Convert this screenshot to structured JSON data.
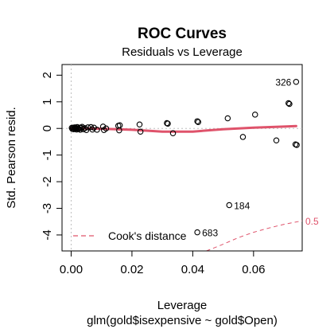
{
  "chart_data": {
    "type": "scatter",
    "title": "ROC Curves",
    "subtitle": "Residuals vs Leverage",
    "xlabel": "Leverage",
    "xlabel2": "glm(gold$isexpensive ~ gold$Open)",
    "ylabel": "Std. Pearson resid.",
    "xlim": [
      -0.003,
      0.076
    ],
    "ylim": [
      -4.6,
      2.4
    ],
    "x_ticks": [
      0.0,
      0.02,
      0.04,
      0.06
    ],
    "x_tick_labels": [
      "0.00",
      "0.02",
      "0.04",
      "0.06"
    ],
    "y_ticks": [
      -4,
      -3,
      -2,
      -1,
      0,
      1,
      2
    ],
    "y_tick_labels": [
      "-4",
      "-3",
      "-2",
      "-1",
      "0",
      "1",
      "2"
    ],
    "grid": false,
    "points": [
      {
        "x": 0.0002,
        "y": 0.02
      },
      {
        "x": 0.0004,
        "y": -0.02
      },
      {
        "x": 0.0006,
        "y": 0.03
      },
      {
        "x": 0.0008,
        "y": -0.03
      },
      {
        "x": 0.001,
        "y": 0.01
      },
      {
        "x": 0.0012,
        "y": 0.04
      },
      {
        "x": 0.0014,
        "y": -0.01
      },
      {
        "x": 0.0016,
        "y": 0.02
      },
      {
        "x": 0.0018,
        "y": -0.04
      },
      {
        "x": 0.002,
        "y": 0.05
      },
      {
        "x": 0.0022,
        "y": 0.0
      },
      {
        "x": 0.0025,
        "y": -0.02
      },
      {
        "x": 0.0028,
        "y": 0.03
      },
      {
        "x": 0.003,
        "y": -0.05
      },
      {
        "x": 0.0033,
        "y": 0.02
      },
      {
        "x": 0.0036,
        "y": 0.06
      },
      {
        "x": 0.004,
        "y": -0.03
      },
      {
        "x": 0.0045,
        "y": 0.01
      },
      {
        "x": 0.005,
        "y": -0.06
      },
      {
        "x": 0.0055,
        "y": 0.04
      },
      {
        "x": 0.0065,
        "y": 0.05
      },
      {
        "x": 0.007,
        "y": -0.04
      },
      {
        "x": 0.0075,
        "y": 0.03
      },
      {
        "x": 0.0085,
        "y": -0.05
      },
      {
        "x": 0.0105,
        "y": 0.07
      },
      {
        "x": 0.0108,
        "y": -0.06
      },
      {
        "x": 0.0115,
        "y": 0.0
      },
      {
        "x": 0.0155,
        "y": 0.1
      },
      {
        "x": 0.0158,
        "y": -0.07
      },
      {
        "x": 0.016,
        "y": 0.12
      },
      {
        "x": 0.0225,
        "y": 0.15
      },
      {
        "x": 0.0228,
        "y": -0.12
      },
      {
        "x": 0.0315,
        "y": 0.2
      },
      {
        "x": 0.0318,
        "y": 0.18
      },
      {
        "x": 0.0335,
        "y": -0.18
      },
      {
        "x": 0.0415,
        "y": 0.27
      },
      {
        "x": 0.0418,
        "y": 0.24
      },
      {
        "x": 0.0515,
        "y": 0.38
      },
      {
        "x": 0.0565,
        "y": -0.32
      },
      {
        "x": 0.0605,
        "y": 0.52
      },
      {
        "x": 0.0675,
        "y": -0.45
      },
      {
        "x": 0.0715,
        "y": 0.95
      },
      {
        "x": 0.0718,
        "y": 0.92
      },
      {
        "x": 0.074,
        "y": 1.75
      },
      {
        "x": 0.0738,
        "y": -0.6
      },
      {
        "x": 0.0742,
        "y": -0.62
      },
      {
        "x": 0.052,
        "y": -2.88
      },
      {
        "x": 0.0415,
        "y": -3.9
      }
    ],
    "point_labels": [
      {
        "x": 0.074,
        "y": 1.75,
        "text": "326",
        "side": "left"
      },
      {
        "x": 0.052,
        "y": -2.88,
        "text": "184",
        "side": "right"
      },
      {
        "x": 0.0415,
        "y": -3.9,
        "text": "683",
        "side": "right"
      }
    ],
    "smooth": {
      "color": "#DF536B",
      "x": [
        0.0,
        0.005,
        0.01,
        0.02,
        0.03,
        0.04,
        0.05,
        0.06,
        0.07,
        0.074
      ],
      "y": [
        0.0,
        0.0,
        -0.01,
        -0.05,
        -0.12,
        -0.12,
        -0.03,
        0.03,
        0.07,
        0.09
      ]
    },
    "cooks_contour": {
      "level": "0.5",
      "color": "#DF536B",
      "x": [
        0.0445,
        0.05,
        0.055,
        0.06,
        0.065,
        0.07,
        0.076
      ],
      "y": [
        -4.62,
        -4.35,
        -4.1,
        -3.9,
        -3.74,
        -3.6,
        -3.47
      ]
    },
    "legend": {
      "position": "bottom-left",
      "label": "Cook's distance"
    }
  }
}
